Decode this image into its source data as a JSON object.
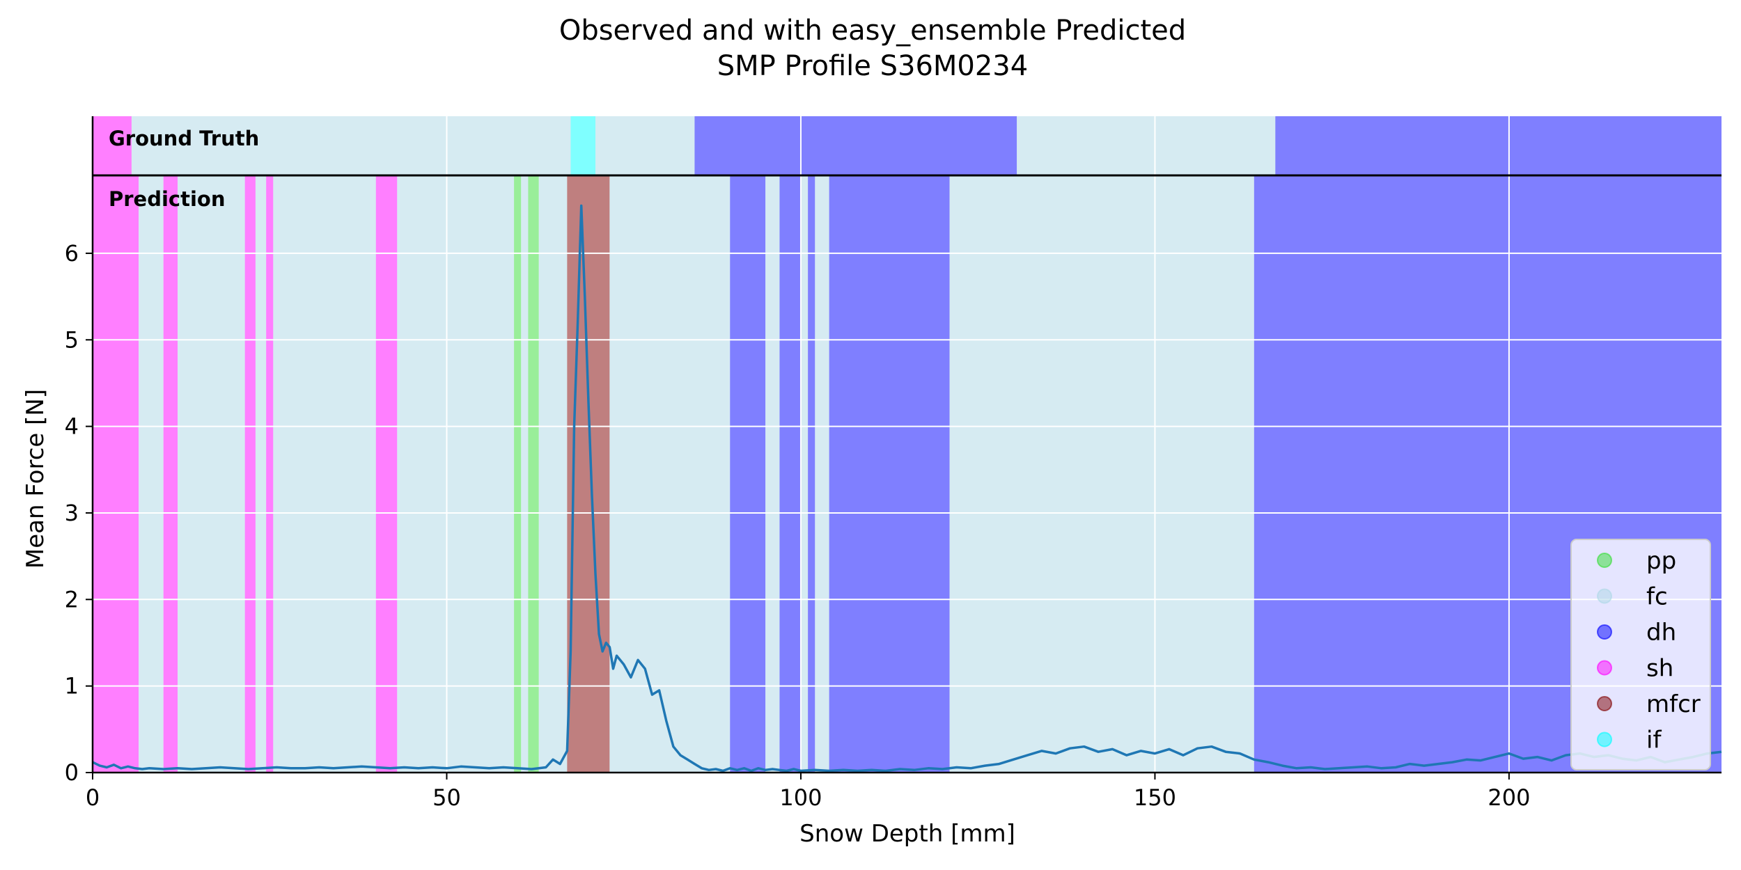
{
  "chart_data": {
    "type": "line",
    "title_line1": "Observed and with easy_ensemble Predicted",
    "title_line2": "SMP Profile S36M0234",
    "xlabel": "Snow Depth [mm]",
    "ylabel": "Mean Force [N]",
    "xlim": [
      0,
      230
    ],
    "ylim": [
      0,
      6.9
    ],
    "x_ticks": [
      0,
      50,
      100,
      150,
      200
    ],
    "y_ticks": [
      0,
      1,
      2,
      3,
      4,
      5,
      6
    ],
    "grid": true,
    "legend_position": "lower-right",
    "panel_labels": {
      "ground_truth": "Ground Truth",
      "prediction": "Prediction"
    },
    "classes": [
      {
        "name": "pp",
        "color": "#33dd33"
      },
      {
        "name": "fc",
        "color": "#add8e6"
      },
      {
        "name": "dh",
        "color": "#0000ff"
      },
      {
        "name": "sh",
        "color": "#ff00ff"
      },
      {
        "name": "mfcr",
        "color": "#800000"
      },
      {
        "name": "if",
        "color": "#00ffff"
      }
    ],
    "line_color": "#1f77b4",
    "ground_truth_segments": [
      {
        "start": 0,
        "end": 5.5,
        "class": "sh"
      },
      {
        "start": 5.5,
        "end": 67.5,
        "class": "fc"
      },
      {
        "start": 67.5,
        "end": 71,
        "class": "if"
      },
      {
        "start": 71,
        "end": 85,
        "class": "fc"
      },
      {
        "start": 85,
        "end": 130.5,
        "class": "dh"
      },
      {
        "start": 130.5,
        "end": 167,
        "class": "fc"
      },
      {
        "start": 167,
        "end": 230,
        "class": "dh"
      }
    ],
    "prediction_segments": [
      {
        "start": 0,
        "end": 6.5,
        "class": "sh"
      },
      {
        "start": 6.5,
        "end": 10,
        "class": "fc"
      },
      {
        "start": 10,
        "end": 12,
        "class": "sh"
      },
      {
        "start": 12,
        "end": 21.5,
        "class": "fc"
      },
      {
        "start": 21.5,
        "end": 23,
        "class": "sh"
      },
      {
        "start": 23,
        "end": 24.5,
        "class": "fc"
      },
      {
        "start": 24.5,
        "end": 25.5,
        "class": "sh"
      },
      {
        "start": 25.5,
        "end": 40,
        "class": "fc"
      },
      {
        "start": 40,
        "end": 43,
        "class": "sh"
      },
      {
        "start": 43,
        "end": 59.5,
        "class": "fc"
      },
      {
        "start": 59.5,
        "end": 60.5,
        "class": "pp"
      },
      {
        "start": 60.5,
        "end": 61.5,
        "class": "fc"
      },
      {
        "start": 61.5,
        "end": 63,
        "class": "pp"
      },
      {
        "start": 63,
        "end": 67,
        "class": "fc"
      },
      {
        "start": 67,
        "end": 73,
        "class": "mfcr"
      },
      {
        "start": 73,
        "end": 90,
        "class": "fc"
      },
      {
        "start": 90,
        "end": 95,
        "class": "dh"
      },
      {
        "start": 95,
        "end": 97,
        "class": "fc"
      },
      {
        "start": 97,
        "end": 100,
        "class": "dh"
      },
      {
        "start": 100,
        "end": 101,
        "class": "fc"
      },
      {
        "start": 101,
        "end": 102,
        "class": "dh"
      },
      {
        "start": 102,
        "end": 104,
        "class": "fc"
      },
      {
        "start": 104,
        "end": 121,
        "class": "dh"
      },
      {
        "start": 121,
        "end": 164,
        "class": "fc"
      },
      {
        "start": 164,
        "end": 230,
        "class": "dh"
      }
    ],
    "series": [
      {
        "x": [
          0,
          1,
          2,
          3,
          4,
          5,
          6,
          7,
          8,
          10,
          12,
          14,
          16,
          18,
          20,
          22,
          24,
          26,
          28,
          30,
          32,
          34,
          36,
          38,
          40,
          42,
          44,
          46,
          48,
          50,
          52,
          54,
          56,
          58,
          60,
          62,
          64,
          65,
          66,
          67,
          67.5,
          68,
          68.5,
          69,
          69.5,
          70,
          70.5,
          71,
          71.5,
          72,
          72.5,
          73,
          73.5,
          74,
          75,
          76,
          77,
          78,
          79,
          80,
          81,
          82,
          83,
          84,
          85,
          86,
          87,
          88,
          89,
          90,
          91,
          92,
          93,
          94,
          95,
          96,
          97,
          98,
          99,
          100,
          102,
          104,
          106,
          108,
          110,
          112,
          114,
          116,
          118,
          120,
          122,
          124,
          126,
          128,
          130,
          132,
          134,
          136,
          138,
          140,
          142,
          144,
          146,
          148,
          150,
          152,
          154,
          156,
          158,
          160,
          162,
          164,
          166,
          168,
          170,
          172,
          174,
          176,
          178,
          180,
          182,
          184,
          186,
          188,
          190,
          192,
          194,
          196,
          198,
          200,
          202,
          204,
          206,
          208,
          210,
          212,
          214,
          216,
          218,
          220,
          222,
          224,
          226,
          228,
          230
        ],
        "y": [
          0.12,
          0.08,
          0.06,
          0.09,
          0.05,
          0.07,
          0.05,
          0.04,
          0.05,
          0.04,
          0.05,
          0.04,
          0.05,
          0.06,
          0.05,
          0.04,
          0.05,
          0.06,
          0.05,
          0.05,
          0.06,
          0.05,
          0.06,
          0.07,
          0.06,
          0.05,
          0.06,
          0.05,
          0.06,
          0.05,
          0.07,
          0.06,
          0.05,
          0.06,
          0.05,
          0.04,
          0.06,
          0.15,
          0.1,
          0.25,
          1.4,
          4.0,
          5.2,
          6.55,
          5.5,
          4.3,
          3.2,
          2.3,
          1.6,
          1.4,
          1.5,
          1.45,
          1.2,
          1.35,
          1.25,
          1.1,
          1.3,
          1.2,
          0.9,
          0.95,
          0.6,
          0.3,
          0.2,
          0.15,
          0.1,
          0.05,
          0.03,
          0.04,
          0.02,
          0.05,
          0.03,
          0.05,
          0.02,
          0.05,
          0.03,
          0.04,
          0.03,
          0.02,
          0.04,
          0.02,
          0.03,
          0.02,
          0.03,
          0.02,
          0.03,
          0.02,
          0.04,
          0.03,
          0.05,
          0.04,
          0.06,
          0.05,
          0.08,
          0.1,
          0.15,
          0.2,
          0.25,
          0.22,
          0.28,
          0.3,
          0.24,
          0.27,
          0.2,
          0.25,
          0.22,
          0.27,
          0.2,
          0.28,
          0.3,
          0.24,
          0.22,
          0.15,
          0.12,
          0.08,
          0.05,
          0.06,
          0.04,
          0.05,
          0.06,
          0.07,
          0.05,
          0.06,
          0.1,
          0.08,
          0.1,
          0.12,
          0.15,
          0.14,
          0.18,
          0.22,
          0.16,
          0.18,
          0.14,
          0.2,
          0.22,
          0.18,
          0.2,
          0.16,
          0.14,
          0.18,
          0.12,
          0.15,
          0.18,
          0.22,
          0.24
        ]
      }
    ]
  }
}
